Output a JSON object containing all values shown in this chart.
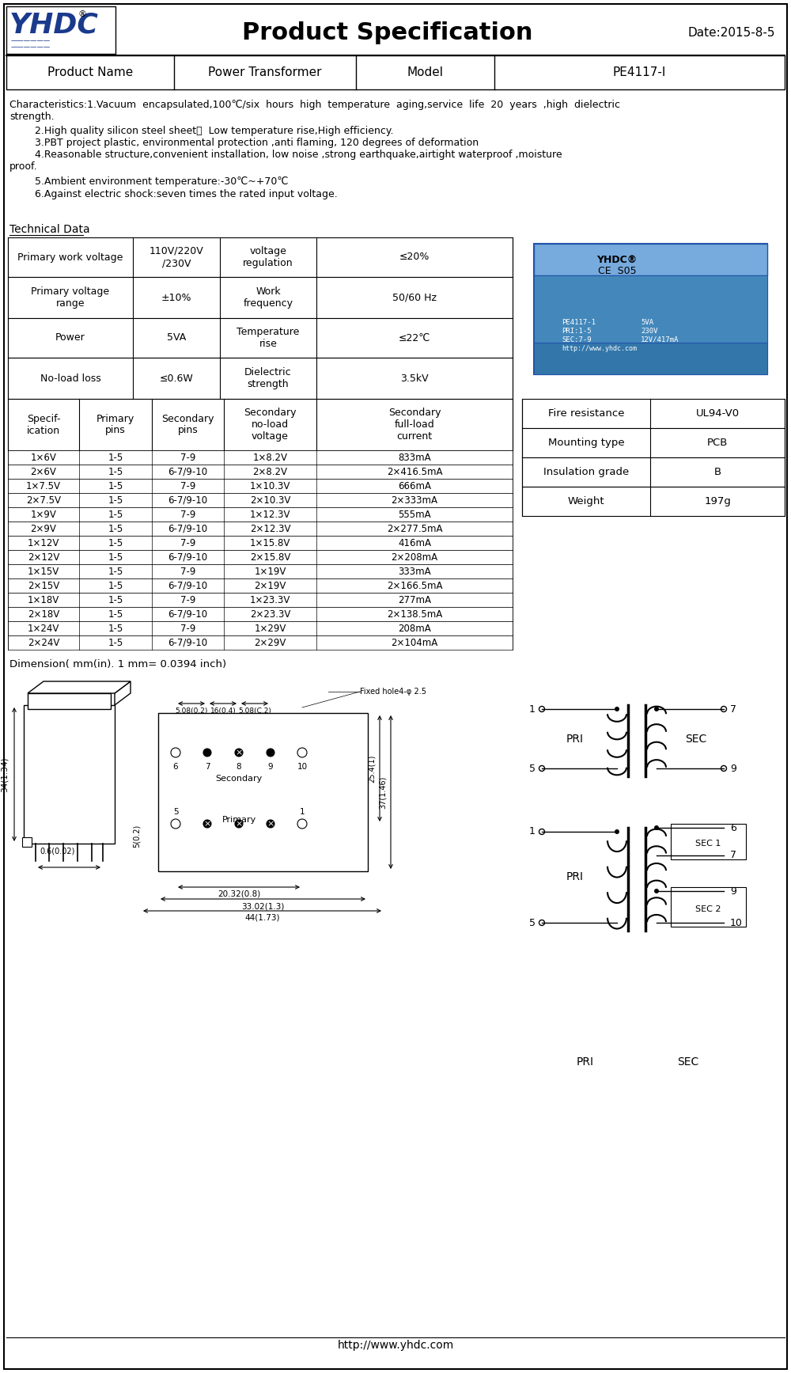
{
  "title": "Product Specification",
  "date": "Date:2015-8-5",
  "product_name": "Power Transformer",
  "model": "PE4117-I",
  "char_line0": "Characteristics:1.Vacuum  encapsulated,100℃/six  hours  high  temperature  aging,service  life  20  years  ,high  dielectric",
  "char_line0b": "strength.",
  "char_line1": "        2.High quality silicon steel sheet，  Low temperature rise,High efficiency.",
  "char_line2": "        3.PBT project plastic, environmental protection ,anti flaming, 120 degrees of deformation",
  "char_line3a": "        4.Reasonable structure,convenient installation, low noise ,strong earthquake,airtight waterproof ,moisture",
  "char_line3b": "proof.",
  "char_line4": "        5.Ambient environment temperature:-30℃~+70℃",
  "char_line5": "        6.Against electric shock:seven times the rated input voltage.",
  "tech_data_label": "Technical Data",
  "row_data": [
    [
      "Primary work voltage",
      "110V/220V\n/230V",
      "voltage\nregulation",
      "≤20%"
    ],
    [
      "Primary voltage\nrange",
      "±10%",
      "Work\nfrequency",
      "50/60 Hz"
    ],
    [
      "Power",
      "5VA",
      "Temperature\nrise",
      "≤22℃"
    ],
    [
      "No-load loss",
      "≤0.6W",
      "Dielectric\nstrength",
      "3.5kV"
    ]
  ],
  "hdr5": [
    "Specif-\nication",
    "Primary\npins",
    "Secondary\npins",
    "Secondary\nno-load\nvoltage",
    "Secondary\nfull-load\ncurrent"
  ],
  "spec_rows": [
    [
      "1×6V",
      "1-5",
      "7-9",
      "1×8.2V",
      "833mA"
    ],
    [
      "2×6V",
      "1-5",
      "6-7/9-10",
      "2×8.2V",
      "2×416.5mA"
    ],
    [
      "1×7.5V",
      "1-5",
      "7-9",
      "1×10.3V",
      "666mA"
    ],
    [
      "2×7.5V",
      "1-5",
      "6-7/9-10",
      "2×10.3V",
      "2×333mA"
    ],
    [
      "1×9V",
      "1-5",
      "7-9",
      "1×12.3V",
      "555mA"
    ],
    [
      "2×9V",
      "1-5",
      "6-7/9-10",
      "2×12.3V",
      "2×277.5mA"
    ],
    [
      "1×12V",
      "1-5",
      "7-9",
      "1×15.8V",
      "416mA"
    ],
    [
      "2×12V",
      "1-5",
      "6-7/9-10",
      "2×15.8V",
      "2×208mA"
    ],
    [
      "1×15V",
      "1-5",
      "7-9",
      "1×19V",
      "333mA"
    ],
    [
      "2×15V",
      "1-5",
      "6-7/9-10",
      "2×19V",
      "2×166.5mA"
    ],
    [
      "1×18V",
      "1-5",
      "7-9",
      "1×23.3V",
      "277mA"
    ],
    [
      "2×18V",
      "1-5",
      "6-7/9-10",
      "2×23.3V",
      "2×138.5mA"
    ],
    [
      "1×24V",
      "1-5",
      "7-9",
      "1×29V",
      "208mA"
    ],
    [
      "2×24V",
      "1-5",
      "6-7/9-10",
      "2×29V",
      "2×104mA"
    ]
  ],
  "right_table": [
    [
      "Fire resistance",
      "UL94-V0"
    ],
    [
      "Mounting type",
      "PCB"
    ],
    [
      "Insulation grade",
      "B"
    ],
    [
      "Weight",
      "197g"
    ]
  ],
  "dimension_label": "Dimension( mm(in). 1 mm= 0.0394 inch)",
  "footer": "http://www.yhdc.com",
  "logo_color": "#1a3a8c"
}
